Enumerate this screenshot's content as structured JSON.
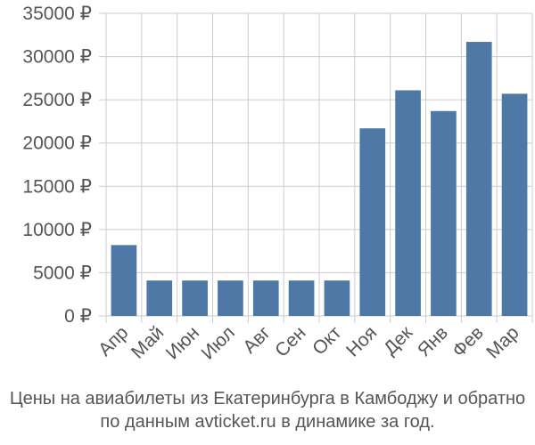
{
  "caption": {
    "line1": "Цены на авиабилеты из Екатеринбурга в Камбоджу и обратно",
    "line2": "по данным avticket.ru в динамике за год."
  },
  "colors": {
    "bar": "#4e79a7",
    "grid": "#cccccc",
    "text": "#555555"
  },
  "chart_data": {
    "type": "bar",
    "categories": [
      "Апр",
      "Май",
      "Июн",
      "Июл",
      "Авг",
      "Сен",
      "Окт",
      "Ноя",
      "Дек",
      "Янв",
      "Фев",
      "Мар"
    ],
    "values": [
      8200,
      4100,
      4100,
      4100,
      4100,
      4100,
      4100,
      21700,
      26100,
      23700,
      31700,
      25700
    ],
    "yticks": [
      "0 ₽",
      "5000 ₽",
      "10000 ₽",
      "15000 ₽",
      "20000 ₽",
      "25000 ₽",
      "30000 ₽",
      "35000 ₽"
    ],
    "ytick_values": [
      0,
      5000,
      10000,
      15000,
      20000,
      25000,
      30000,
      35000
    ],
    "ylim": [
      0,
      35000
    ],
    "grid": true,
    "title": "",
    "xlabel": "",
    "ylabel": ""
  }
}
